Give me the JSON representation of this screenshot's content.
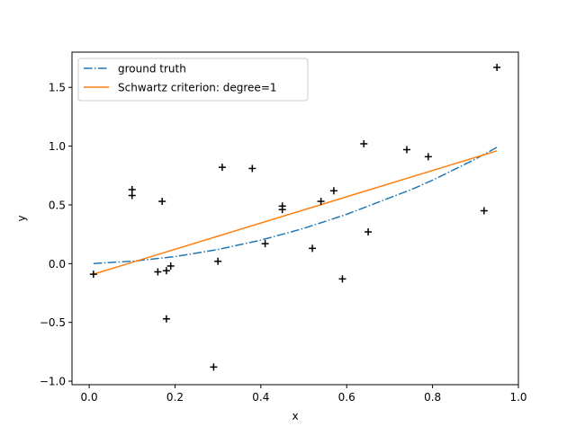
{
  "chart_data": {
    "type": "scatter",
    "title": "",
    "xlabel": "x",
    "ylabel": "y",
    "xlim": [
      -0.04,
      1.0
    ],
    "ylim": [
      -1.03,
      1.8
    ],
    "xticks": [
      0.0,
      0.2,
      0.4,
      0.6,
      0.8,
      1.0
    ],
    "xtick_labels": [
      "0.0",
      "0.2",
      "0.4",
      "0.6",
      "0.8",
      "1.0"
    ],
    "yticks": [
      -1.0,
      -0.5,
      0.0,
      0.5,
      1.0,
      1.5
    ],
    "ytick_labels": [
      "−1.0",
      "−0.5",
      "0.0",
      "0.5",
      "1.0",
      "1.5"
    ],
    "grid": false,
    "legend_position": "top-left",
    "series": [
      {
        "name": "ground truth",
        "kind": "line",
        "style": "dashdot",
        "color": "#1f77b4",
        "x": [
          0.01,
          0.05,
          0.1,
          0.15,
          0.2,
          0.25,
          0.3,
          0.35,
          0.4,
          0.45,
          0.5,
          0.55,
          0.6,
          0.65,
          0.7,
          0.75,
          0.8,
          0.85,
          0.9,
          0.95
        ],
        "y": [
          0.0,
          0.01,
          0.02,
          0.04,
          0.06,
          0.09,
          0.12,
          0.16,
          0.2,
          0.25,
          0.3,
          0.36,
          0.42,
          0.49,
          0.56,
          0.63,
          0.71,
          0.8,
          0.89,
          0.99
        ]
      },
      {
        "name": "Schwartz criterion: degree=1",
        "kind": "line",
        "style": "solid",
        "color": "#ff7f0e",
        "x": [
          0.01,
          0.95
        ],
        "y": [
          -0.09,
          0.96
        ]
      },
      {
        "name": "",
        "kind": "scatter",
        "marker": "plus",
        "color": "#000000",
        "x": [
          0.01,
          0.1,
          0.1,
          0.16,
          0.17,
          0.18,
          0.18,
          0.19,
          0.29,
          0.3,
          0.31,
          0.38,
          0.41,
          0.45,
          0.45,
          0.52,
          0.54,
          0.57,
          0.59,
          0.64,
          0.65,
          0.74,
          0.79,
          0.92,
          0.95
        ],
        "y": [
          -0.09,
          0.63,
          0.58,
          -0.07,
          0.53,
          -0.06,
          -0.47,
          -0.02,
          -0.88,
          0.02,
          0.82,
          0.81,
          0.17,
          0.49,
          0.46,
          0.13,
          0.53,
          0.62,
          -0.13,
          1.02,
          0.27,
          0.97,
          0.91,
          0.45,
          1.67
        ]
      }
    ]
  }
}
